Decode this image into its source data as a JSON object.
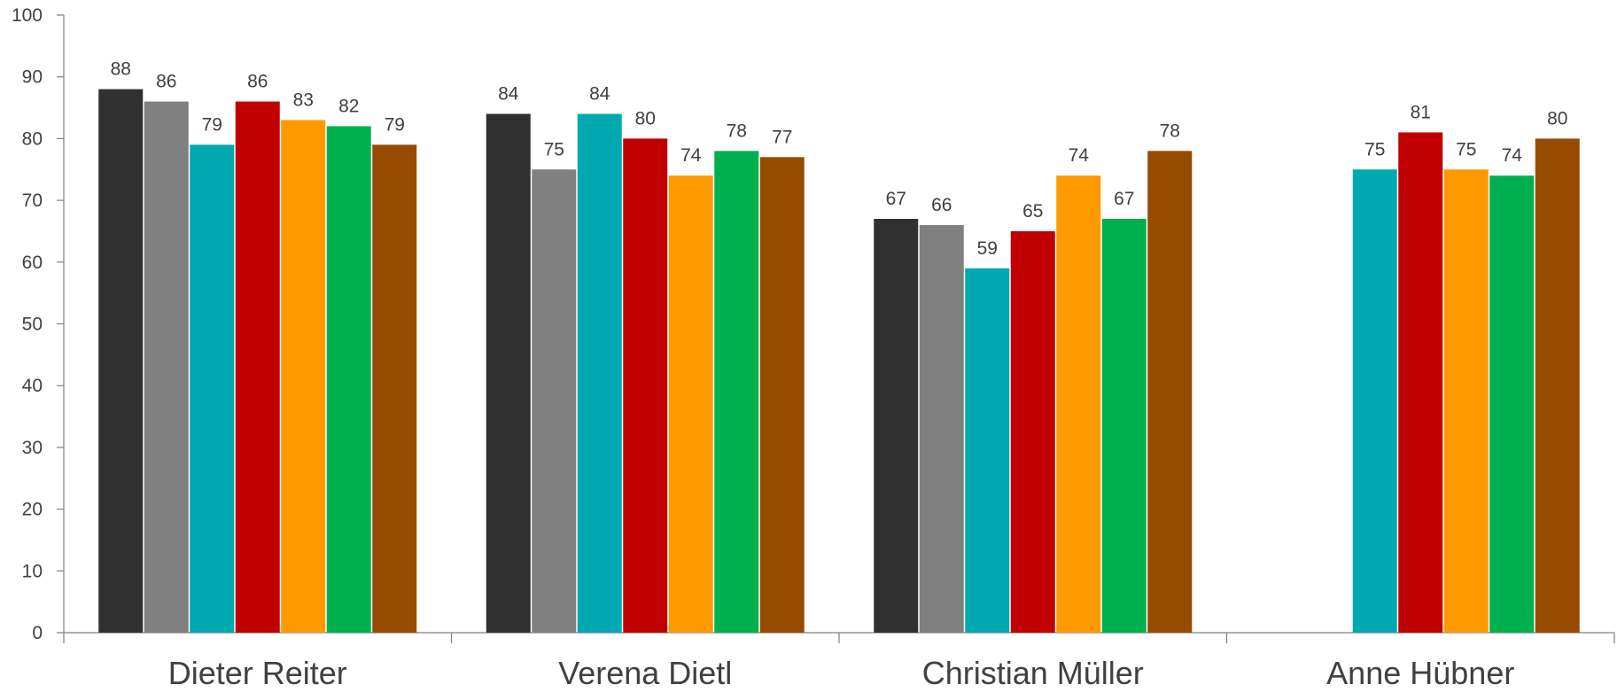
{
  "chart_data": {
    "type": "bar",
    "title": "",
    "xlabel": "",
    "ylabel": "",
    "ylim": [
      0,
      100
    ],
    "yticks": [
      0,
      10,
      20,
      30,
      40,
      50,
      60,
      70,
      80,
      90,
      100
    ],
    "grid": false,
    "legend": "none",
    "categories": [
      "Dieter Reiter",
      "Verena Dietl",
      "Christian Müller",
      "Anne Hübner"
    ],
    "series": [
      {
        "color": "#303030",
        "values": [
          88,
          84,
          67,
          null
        ],
        "labels": [
          "88",
          "84",
          "67",
          ""
        ]
      },
      {
        "color": "#808080",
        "values": [
          86,
          75,
          66,
          null
        ],
        "labels": [
          "86",
          "75",
          "66",
          ""
        ]
      },
      {
        "color": "#00A8B0",
        "values": [
          79,
          84,
          59,
          75
        ],
        "labels": [
          "79",
          "84",
          "59",
          "75"
        ]
      },
      {
        "color": "#C00000",
        "values": [
          86,
          80,
          65,
          81
        ],
        "labels": [
          "86",
          "80",
          "65",
          "81"
        ]
      },
      {
        "color": "#FF9900",
        "values": [
          83,
          74,
          74,
          75
        ],
        "labels": [
          "83",
          "74",
          "74",
          "75"
        ]
      },
      {
        "color": "#00B050",
        "values": [
          82,
          78,
          67,
          74
        ],
        "labels": [
          "82",
          "78",
          "67",
          "74"
        ]
      },
      {
        "color": "#964B00",
        "values": [
          79,
          77,
          78,
          80
        ],
        "labels": [
          "79",
          "77",
          "78",
          "80"
        ]
      }
    ]
  }
}
